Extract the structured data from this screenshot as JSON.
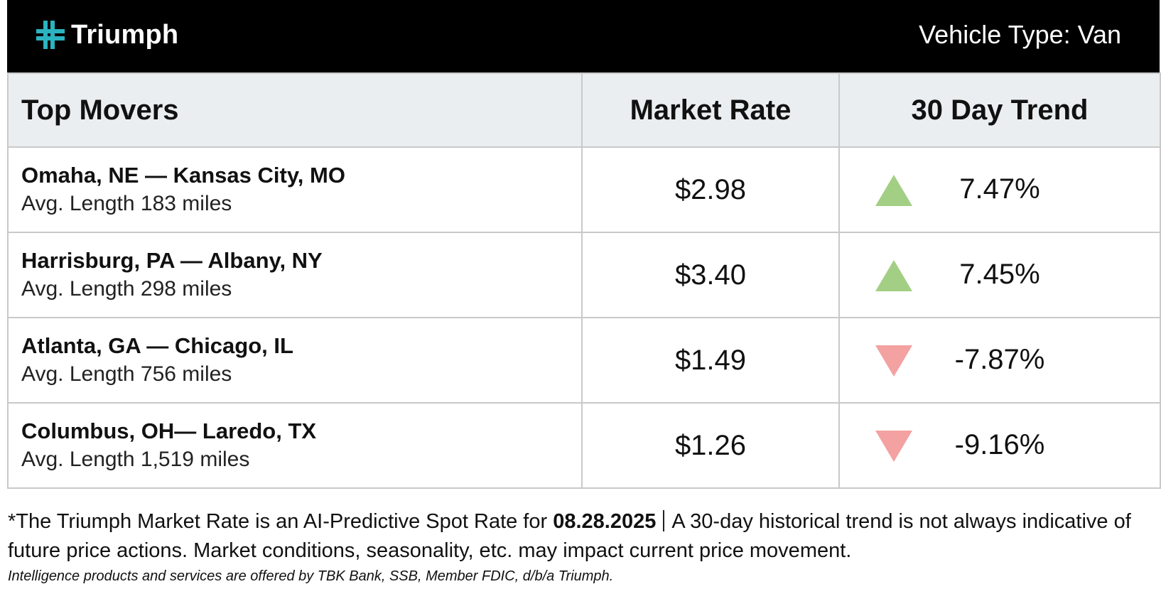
{
  "header": {
    "brand": "Triumph",
    "brand_icon": "triumph-cross-logo-icon",
    "vehicle_type": "Vehicle Type: Van"
  },
  "table": {
    "columns": [
      "Top Movers",
      "Market Rate",
      "30 Day Trend"
    ],
    "rows": [
      {
        "lane": "Omaha, NE — Kansas City, MO",
        "length": "Avg. Length 183 miles",
        "rate": "$2.98",
        "trend": "7.47%",
        "direction": "up"
      },
      {
        "lane": "Harrisburg, PA — Albany, NY",
        "length": "Avg. Length 298 miles",
        "rate": "$3.40",
        "trend": "7.45%",
        "direction": "up"
      },
      {
        "lane": "Atlanta, GA — Chicago, IL",
        "length": "Avg. Length 756 miles",
        "rate": "$1.49",
        "trend": "-7.87%",
        "direction": "down"
      },
      {
        "lane": "Columbus, OH— Laredo, TX",
        "length": "Avg. Length 1,519 miles",
        "rate": "$1.26",
        "trend": "-9.16%",
        "direction": "down"
      }
    ]
  },
  "colors": {
    "up": "#a3cf84",
    "down": "#f4a1a1",
    "brand_accent": "#2bb3c0"
  },
  "footnote": {
    "part1": "*The Triumph Market Rate is an AI-Predictive Spot Rate for ",
    "date": "08.28.2025",
    "part2": "A 30-day historical trend is not always indicative of future price actions. Market conditions, seasonality, etc. may impact current price movement.",
    "disclaimer": "Intelligence products and services are offered by TBK Bank, SSB, Member FDIC, d/b/a Triumph."
  }
}
